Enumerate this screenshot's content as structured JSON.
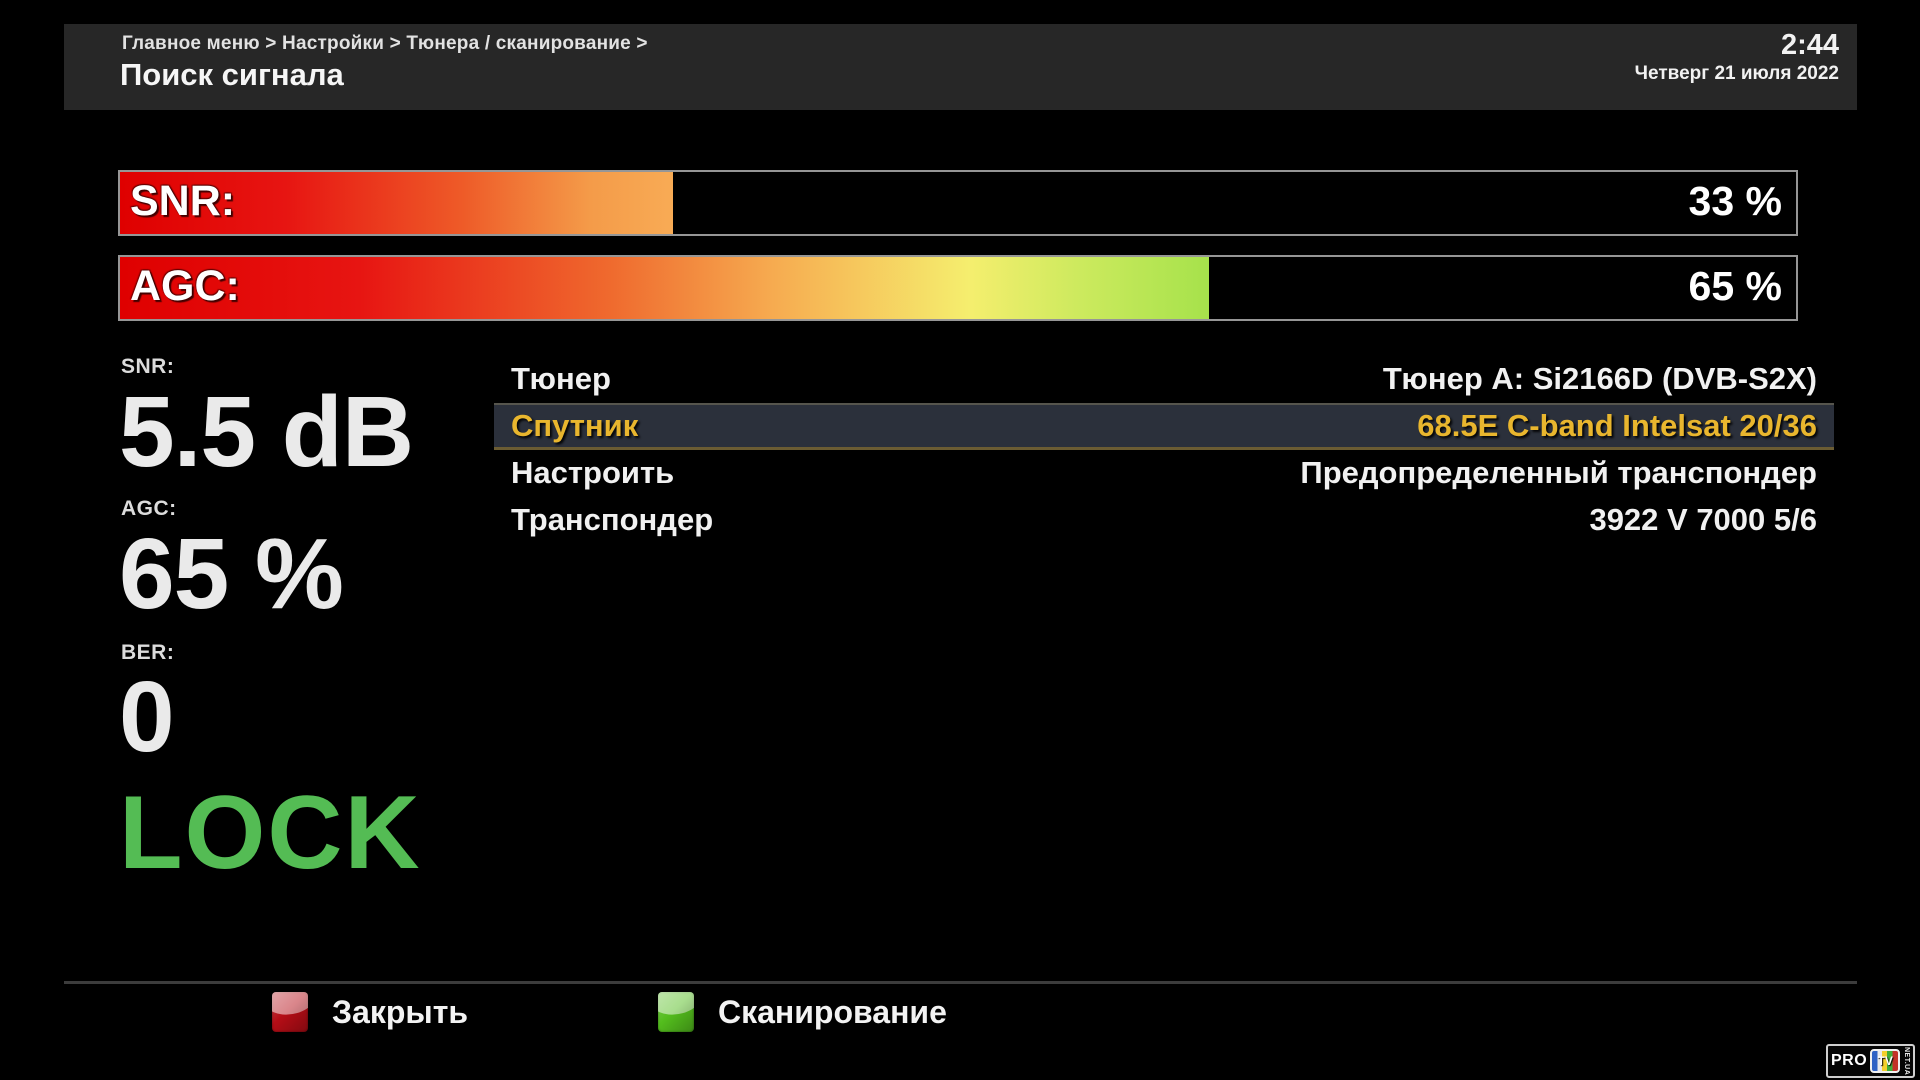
{
  "header": {
    "breadcrumb": "Главное меню > Настройки > Тюнера / сканирование >",
    "title": "Поиск сигнала",
    "time": "2:44",
    "date": "Четверг 21 июля 2022"
  },
  "bars": {
    "snr": {
      "label": "SNR:",
      "value_text": "33 %",
      "percent": 33,
      "fill_colors": [
        "#df0000 0%",
        "#e71512 30%",
        "#ee5b28 62%",
        "#f49b49 85%",
        "#f8ab55 100%"
      ]
    },
    "agc": {
      "label": "AGC:",
      "value_text": "65 %",
      "percent": 65,
      "fill_colors": [
        "#df0000 0%",
        "#e71512 22%",
        "#ef6a2e 45%",
        "#f6ab50 60%",
        "#f5ee6e 78%",
        "#cdea5e 88%",
        "#a6e24b 100%"
      ]
    }
  },
  "readings": {
    "snr_label": "SNR:",
    "snr_value": "5.5 dB",
    "agc_label": "AGC:",
    "agc_value": "65 %",
    "ber_label": "BER:",
    "ber_value": "0",
    "lock_text": "LOCK",
    "lock_color": "#54bc54"
  },
  "menu": {
    "rows": [
      {
        "label": "Тюнер",
        "value": "Тюнер A: Si2166D (DVB-S2X)",
        "selected": false
      },
      {
        "label": "Спутник",
        "value": "68.5E C-band Intelsat 20/36",
        "selected": true
      },
      {
        "label": "Настроить",
        "value": "Предопределенный транспондер",
        "selected": false
      },
      {
        "label": "Транспондер",
        "value": "3922 V 7000 5/6",
        "selected": false
      }
    ],
    "highlight_bg": "#2b303b",
    "highlight_border_top": "#56554d",
    "highlight_border_bottom": "#6b5c33",
    "highlight_text_color": "#e9b62e"
  },
  "footer": {
    "buttons": [
      {
        "label": "Закрыть",
        "key_color": "#b40d16"
      },
      {
        "label": "Сканирование",
        "key_color": "#53bd1d"
      }
    ]
  },
  "logo": {
    "pro": "PRO",
    "tv": "TV",
    "netua": "NET.UA"
  }
}
